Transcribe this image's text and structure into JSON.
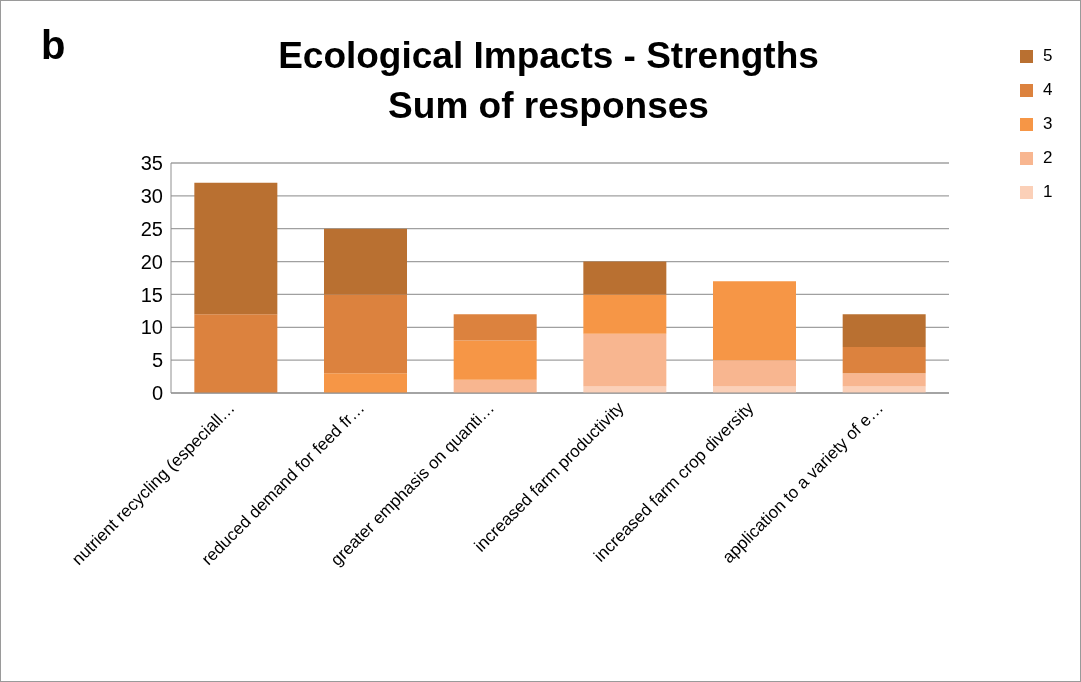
{
  "chart_data": {
    "type": "bar",
    "title": "Ecological Impacts - Strengths\nSum of responses",
    "annotations": [
      "b"
    ],
    "categories": [
      "nutrient recycling (especiall…",
      "reduced demand for feed fr…",
      "greater emphasis on quanti…",
      "increased farm productivity",
      "increased farm crop diversity",
      "application to a variety of e…"
    ],
    "series": [
      {
        "name": "1",
        "color": "#fbd0b8",
        "values": [
          0,
          0,
          0,
          1,
          1,
          1
        ]
      },
      {
        "name": "2",
        "color": "#f8b690",
        "values": [
          0,
          0,
          2,
          8,
          4,
          2
        ]
      },
      {
        "name": "3",
        "color": "#f69646",
        "values": [
          0,
          3,
          6,
          6,
          12,
          0
        ]
      },
      {
        "name": "4",
        "color": "#dc823e",
        "values": [
          12,
          12,
          4,
          0,
          0,
          4
        ]
      },
      {
        "name": "5",
        "color": "#b97031",
        "values": [
          20,
          10,
          0,
          5,
          0,
          5
        ]
      }
    ],
    "stacked": true,
    "ylim": [
      0,
      35
    ],
    "yticks": [
      0,
      5,
      10,
      15,
      20,
      25,
      30,
      35
    ],
    "grid": "y",
    "legend": "right"
  }
}
